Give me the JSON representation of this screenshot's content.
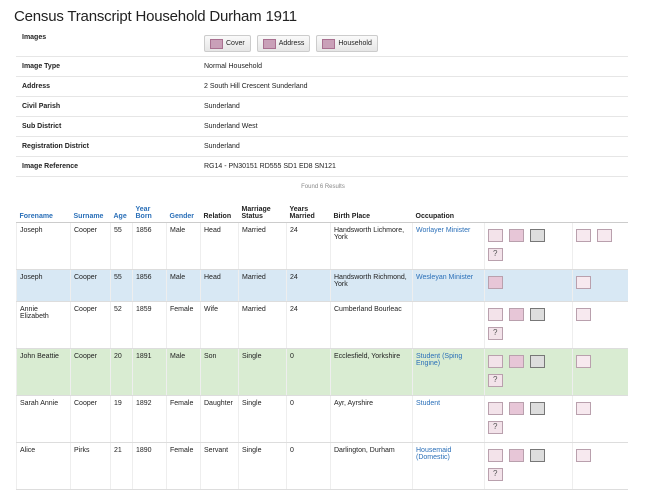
{
  "page": {
    "title": "Census Transcript Household Durham 1911"
  },
  "meta": {
    "images_label": "Images",
    "image_buttons": [
      {
        "label": "Cover",
        "icon": "cover-image-icon"
      },
      {
        "label": "Address",
        "icon": "address-image-icon"
      },
      {
        "label": "Household",
        "icon": "household-image-icon"
      }
    ],
    "rows": [
      {
        "label": "Image Type",
        "value": "Normal Household"
      },
      {
        "label": "Address",
        "value": "2 South Hill Crescent Sunderland"
      },
      {
        "label": "Civil Parish",
        "value": "Sunderland"
      },
      {
        "label": "Sub District",
        "value": "Sunderland West"
      },
      {
        "label": "Registration District",
        "value": "Sunderland"
      },
      {
        "label": "Image Reference",
        "value": "RG14 - PN30151 RD555 SD1 ED8 SN121"
      }
    ]
  },
  "results": {
    "found_text": "Found 6 Results"
  },
  "table": {
    "headers": {
      "forename": "Forename",
      "surname": "Surname",
      "age": "Age",
      "year_born": "Year Born",
      "gender": "Gender",
      "relation": "Relation",
      "marriage_status": "Marriage Status",
      "years_married": "Years Married",
      "birth_place": "Birth Place",
      "occupation": "Occupation"
    },
    "rows": [
      {
        "forename": "Joseph",
        "surname": "Cooper",
        "age": "55",
        "year_born": "1856",
        "gender": "Male",
        "relation": "Head",
        "marriage_status": "Married",
        "years_married": "24",
        "birth_place": "Handsworth Lichmore, York",
        "occupation": "Worlayer Minister"
      },
      {
        "forename": "Joseph",
        "surname": "Cooper",
        "age": "55",
        "year_born": "1856",
        "gender": "Male",
        "relation": "Head",
        "marriage_status": "Married",
        "years_married": "24",
        "birth_place": "Handsworth Richmond, York",
        "occupation": "Wesleyan Minister"
      },
      {
        "forename": "Annie Elizabeth",
        "surname": "Cooper",
        "age": "52",
        "year_born": "1859",
        "gender": "Female",
        "relation": "Wife",
        "marriage_status": "Married",
        "years_married": "24",
        "birth_place": "Cumberland Bourleac",
        "occupation": ""
      },
      {
        "forename": "John Beattie",
        "surname": "Cooper",
        "age": "20",
        "year_born": "1891",
        "gender": "Male",
        "relation": "Son",
        "marriage_status": "Single",
        "years_married": "0",
        "birth_place": "Ecclesfield, Yorkshire",
        "occupation": "Student (Sping Engine)"
      },
      {
        "forename": "Sarah Annie",
        "surname": "Cooper",
        "age": "19",
        "year_born": "1892",
        "gender": "Female",
        "relation": "Daughter",
        "marriage_status": "Single",
        "years_married": "0",
        "birth_place": "Ayr, Ayrshire",
        "occupation": "Student"
      },
      {
        "forename": "Alice",
        "surname": "Pirks",
        "age": "21",
        "year_born": "1890",
        "gender": "Female",
        "relation": "Servant",
        "marriage_status": "Single",
        "years_married": "0",
        "birth_place": "Darlington, Durham",
        "occupation": "Housemaid (Domestic)"
      }
    ]
  },
  "colors": {
    "link": "#2a6fb8",
    "highlight_blue": "#d8e8f4",
    "highlight_green": "#d9ecd2"
  }
}
